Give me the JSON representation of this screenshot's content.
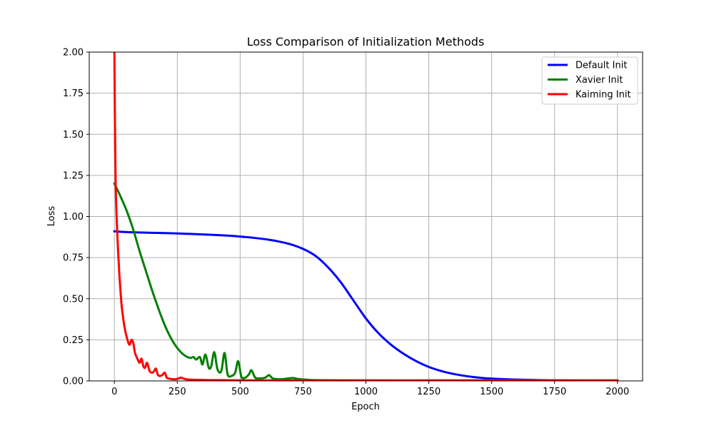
{
  "chart_data": {
    "type": "line",
    "title": "Loss Comparison of Initialization Methods",
    "xlabel": "Epoch",
    "ylabel": "Loss",
    "xlim": [
      -100,
      2100
    ],
    "ylim": [
      0,
      2.0
    ],
    "xticks": [
      0,
      250,
      500,
      750,
      1000,
      1250,
      1500,
      1750,
      2000
    ],
    "yticks": [
      0.0,
      0.25,
      0.5,
      0.75,
      1.0,
      1.25,
      1.5,
      1.75,
      2.0
    ],
    "xtick_labels": [
      "0",
      "250",
      "500",
      "750",
      "1000",
      "1250",
      "1500",
      "1750",
      "2000"
    ],
    "ytick_labels": [
      "0.00",
      "0.25",
      "0.50",
      "0.75",
      "1.00",
      "1.25",
      "1.50",
      "1.75",
      "2.00"
    ],
    "grid": true,
    "legend_position": "top-right",
    "series": [
      {
        "name": "Default Init",
        "color": "#0000ff",
        "x": [
          0,
          50,
          100,
          150,
          200,
          250,
          300,
          350,
          400,
          450,
          500,
          550,
          600,
          650,
          700,
          750,
          800,
          850,
          900,
          950,
          1000,
          1050,
          1100,
          1150,
          1200,
          1250,
          1300,
          1350,
          1400,
          1450,
          1500,
          1600,
          1700,
          1800,
          1900,
          2000
        ],
        "y": [
          0.91,
          0.905,
          0.903,
          0.901,
          0.899,
          0.897,
          0.894,
          0.891,
          0.888,
          0.884,
          0.878,
          0.871,
          0.862,
          0.849,
          0.831,
          0.803,
          0.76,
          0.69,
          0.6,
          0.49,
          0.38,
          0.29,
          0.22,
          0.165,
          0.12,
          0.085,
          0.06,
          0.042,
          0.029,
          0.02,
          0.014,
          0.008,
          0.005,
          0.003,
          0.002,
          0.002
        ]
      },
      {
        "name": "Xavier Init",
        "color": "#008000",
        "x": [
          0,
          25,
          50,
          75,
          100,
          125,
          150,
          175,
          200,
          225,
          250,
          275,
          300,
          315,
          325,
          340,
          350,
          362,
          375,
          385,
          397,
          410,
          425,
          438,
          450,
          465,
          480,
          492,
          505,
          520,
          535,
          545,
          560,
          580,
          600,
          615,
          630,
          660,
          690,
          710,
          730,
          760,
          800,
          900,
          1000,
          1250,
          1500,
          1750,
          2000
        ],
        "y": [
          1.2,
          1.12,
          1.03,
          0.92,
          0.79,
          0.67,
          0.55,
          0.44,
          0.34,
          0.26,
          0.2,
          0.16,
          0.14,
          0.145,
          0.13,
          0.145,
          0.1,
          0.16,
          0.08,
          0.09,
          0.175,
          0.07,
          0.06,
          0.17,
          0.04,
          0.03,
          0.05,
          0.12,
          0.025,
          0.02,
          0.04,
          0.065,
          0.02,
          0.015,
          0.02,
          0.035,
          0.015,
          0.01,
          0.015,
          0.018,
          0.012,
          0.008,
          0.005,
          0.004,
          0.003,
          0.003,
          0.003,
          0.003,
          0.003
        ]
      },
      {
        "name": "Kaiming Init",
        "color": "#ff0000",
        "x": [
          0,
          2,
          5,
          10,
          15,
          20,
          25,
          30,
          40,
          50,
          60,
          68,
          75,
          82,
          90,
          100,
          108,
          115,
          122,
          130,
          140,
          150,
          158,
          165,
          172,
          180,
          190,
          200,
          208,
          215,
          225,
          240,
          255,
          265,
          280,
          300,
          350,
          400,
          500,
          750,
          1000,
          1250,
          1500,
          1750,
          2000
        ],
        "y": [
          2.0,
          1.6,
          1.2,
          0.95,
          0.78,
          0.64,
          0.53,
          0.44,
          0.33,
          0.26,
          0.22,
          0.25,
          0.23,
          0.17,
          0.14,
          0.11,
          0.135,
          0.09,
          0.08,
          0.11,
          0.06,
          0.05,
          0.06,
          0.075,
          0.04,
          0.03,
          0.035,
          0.05,
          0.02,
          0.015,
          0.012,
          0.01,
          0.015,
          0.02,
          0.012,
          0.008,
          0.006,
          0.005,
          0.004,
          0.003,
          0.003,
          0.003,
          0.003,
          0.003,
          0.003
        ]
      }
    ]
  }
}
